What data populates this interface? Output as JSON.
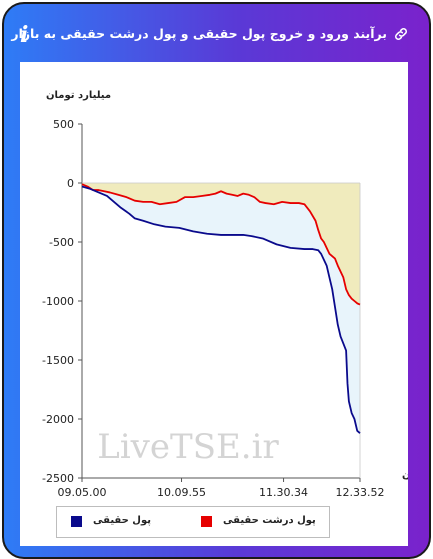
{
  "header": {
    "title": "برآیند ورود و خروج پول حقیقی و پول درشت حقیقی به بازار",
    "link_icon": "link-icon",
    "info_icon": "info-icon",
    "info_glyph": "i",
    "background_from": "#2e7cf6",
    "background_to": "#7a22cc"
  },
  "chart_data": {
    "type": "line",
    "ylabel": "میلیارد تومان",
    "xlabel": "زمان",
    "ylim": [
      -2500,
      500
    ],
    "yticks": [
      500,
      0,
      -500,
      -1000,
      -1500,
      -2000,
      -2500
    ],
    "ytick_labels": [
      "500",
      "0",
      "-500",
      "-1000",
      "-1500",
      "-2000",
      "-2500"
    ],
    "xlim": [
      0,
      100
    ],
    "xticks": [
      0,
      35.8,
      72.5,
      100
    ],
    "xtick_labels": [
      "09.05.00",
      "10.09.55",
      "11.30.34",
      "12.33.52"
    ],
    "watermark": "LiveTSE.ir",
    "legend": "bottom",
    "grid": false,
    "series": [
      {
        "name": "پول حقیقی",
        "color": "#0a0a8c",
        "fill": "#e8f4fb",
        "x": [
          0,
          3,
          6,
          9,
          10,
          12,
          14,
          17,
          19,
          22,
          26,
          30,
          35,
          40,
          45,
          50,
          55,
          58,
          61,
          65,
          70,
          75,
          80,
          83,
          85,
          86,
          88,
          89,
          90,
          91,
          92,
          93,
          94,
          95,
          95.5,
          96,
          97,
          98,
          99,
          100
        ],
        "y": [
          -30,
          -50,
          -80,
          -110,
          -130,
          -170,
          -210,
          -260,
          -300,
          -320,
          -350,
          -370,
          -380,
          -410,
          -430,
          -440,
          -440,
          -440,
          -450,
          -470,
          -520,
          -550,
          -560,
          -560,
          -570,
          -600,
          -700,
          -800,
          -900,
          -1050,
          -1200,
          -1300,
          -1360,
          -1420,
          -1700,
          -1850,
          -1950,
          -2000,
          -2100,
          -2120
        ]
      },
      {
        "name": "پول درشت حقیقی",
        "color": "#e60000",
        "fill": "#f0ebbd",
        "x": [
          0,
          2,
          4,
          6,
          8,
          10,
          13,
          16,
          19,
          22,
          25,
          28,
          31,
          34,
          37,
          40,
          43,
          46,
          48,
          50,
          52,
          54,
          56,
          58,
          60,
          62,
          64,
          66,
          69,
          72,
          75,
          78,
          80,
          82,
          84,
          85,
          86,
          87,
          88,
          89,
          90,
          91,
          92,
          93,
          94,
          95,
          96,
          97,
          98,
          99,
          100
        ],
        "y": [
          -10,
          -30,
          -60,
          -60,
          -70,
          -80,
          -100,
          -120,
          -150,
          -160,
          -160,
          -180,
          -170,
          -160,
          -120,
          -120,
          -110,
          -100,
          -90,
          -70,
          -90,
          -100,
          -110,
          -90,
          -100,
          -120,
          -160,
          -170,
          -180,
          -160,
          -170,
          -170,
          -180,
          -240,
          -320,
          -400,
          -470,
          -500,
          -550,
          -600,
          -620,
          -640,
          -700,
          -750,
          -800,
          -900,
          -950,
          -980,
          -1000,
          -1020,
          -1030
        ]
      }
    ]
  }
}
